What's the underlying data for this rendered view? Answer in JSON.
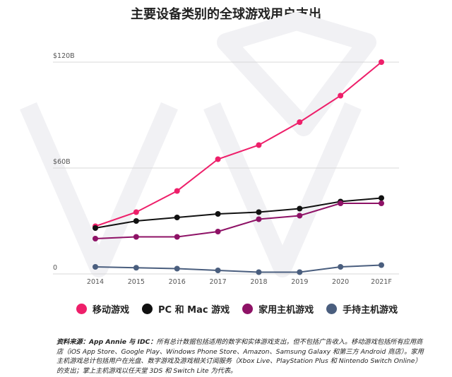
{
  "chart_data": {
    "type": "line",
    "title": "主要设备类别的全球游戏用户支出",
    "categories": [
      "2014",
      "2015",
      "2016",
      "2017",
      "2018",
      "2019",
      "2020",
      "2021F"
    ],
    "y_tick_labels": [
      "$120B",
      "$60B",
      "0"
    ],
    "y_ticks": [
      120,
      60,
      0
    ],
    "ylim": [
      0,
      120
    ],
    "grid": true,
    "legend_position": "bottom",
    "series": [
      {
        "name": "移动游戏",
        "color": "#EE1F6A",
        "values": [
          27,
          35,
          47,
          65,
          73,
          86,
          101,
          120
        ]
      },
      {
        "name": "PC 和 Mac 游戏",
        "color": "#111111",
        "values": [
          26,
          30,
          32,
          34,
          35,
          37,
          41,
          43
        ]
      },
      {
        "name": "家用主机游戏",
        "color": "#8E1266",
        "values": [
          20,
          21,
          21,
          24,
          31,
          33,
          40,
          40
        ]
      },
      {
        "name": "手持主机游戏",
        "color": "#4A5E7E",
        "values": [
          4,
          3.5,
          3,
          2,
          1,
          1,
          4,
          5
        ]
      }
    ]
  },
  "source": {
    "label": "资料来源：",
    "author": "App Annie 与 IDC：",
    "text": "所有总计数据包括适用的数字和实体游戏支出，但不包括广告收入。移动游戏包括所有应用商店（iOS App Store、Google Play、Windows Phone Store、Amazon、Samsung Galaxy 和第三方 Android 商店）。家用主机游戏总计包括用户在光盘、数字游戏及游戏相关订阅服务（Xbox Live、PlayStation Plus 和 Nintendo Switch Online）的支出；掌上主机游戏以任天堂 3DS 和 Switch Lite 为代表。"
  }
}
